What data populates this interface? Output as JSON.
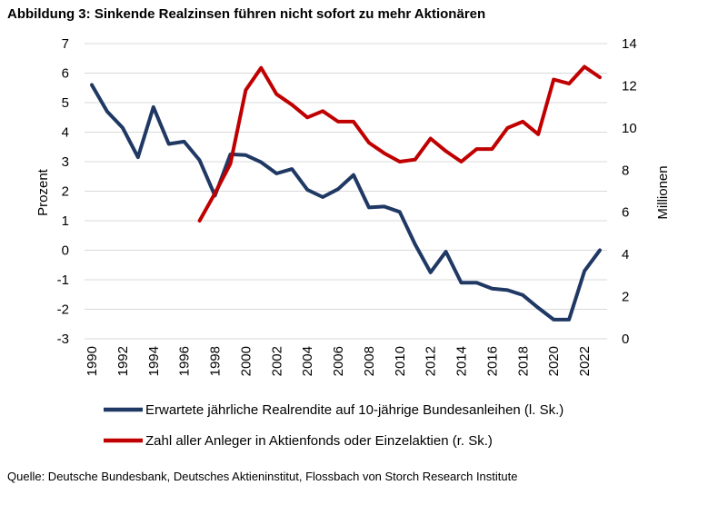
{
  "chart_data": {
    "type": "line",
    "title": "Abbildung 3: Sinkende Realzinsen führen nicht sofort zu mehr Aktionären",
    "source": "Quelle: Deutsche Bundesbank, Deutsches Aktieninstitut, Flossbach von Storch Research Institute",
    "ylabel_left": "Prozent",
    "ylabel_right": "Millionen",
    "ylim_left": [
      -3,
      7
    ],
    "ylim_right": [
      0,
      14
    ],
    "yticks_left": [
      "-3",
      "-2",
      "-1",
      "0",
      "1",
      "2",
      "3",
      "4",
      "5",
      "6",
      "7"
    ],
    "yticks_right": [
      "0",
      "2",
      "4",
      "6",
      "8",
      "10",
      "12",
      "14"
    ],
    "xlim": [
      1990,
      2023
    ],
    "xticks": [
      "1990",
      "1992",
      "1994",
      "1996",
      "1998",
      "2000",
      "2002",
      "2004",
      "2006",
      "2008",
      "2010",
      "2012",
      "2014",
      "2016",
      "2018",
      "2020",
      "2022"
    ],
    "grid": true,
    "legend_position": "bottom",
    "series": [
      {
        "name": "Erwartete jährliche Realrendite auf 10-jährige Bundesanleihen (l. Sk.)",
        "axis": "left",
        "color": "#1F3864",
        "x": [
          1990,
          1991,
          1992,
          1993,
          1994,
          1995,
          1996,
          1997,
          1998,
          1999,
          2000,
          2001,
          2002,
          2003,
          2004,
          2005,
          2006,
          2007,
          2008,
          2009,
          2010,
          2011,
          2012,
          2013,
          2014,
          2015,
          2016,
          2017,
          2018,
          2019,
          2020,
          2021,
          2022,
          2023
        ],
        "values": [
          5.6,
          4.7,
          4.15,
          3.15,
          4.85,
          3.6,
          3.68,
          3.05,
          1.85,
          3.25,
          3.22,
          2.98,
          2.6,
          2.75,
          2.05,
          1.8,
          2.07,
          2.55,
          1.45,
          1.48,
          1.3,
          0.2,
          -0.75,
          -0.05,
          -1.1,
          -1.1,
          -1.3,
          -1.35,
          -1.52,
          -1.95,
          -2.35,
          -2.35,
          -0.7,
          0.0
        ]
      },
      {
        "name": "Zahl aller Anleger in Aktienfonds oder Einzelaktien (r. Sk.)",
        "axis": "right",
        "color": "#C00000",
        "x": [
          1997,
          1998,
          1999,
          2000,
          2001,
          2002,
          2003,
          2004,
          2005,
          2006,
          2007,
          2008,
          2009,
          2010,
          2011,
          2012,
          2013,
          2014,
          2015,
          2016,
          2017,
          2018,
          2019,
          2020,
          2021,
          2022,
          2023
        ],
        "values": [
          5.6,
          6.9,
          8.3,
          11.8,
          12.85,
          11.6,
          11.1,
          10.5,
          10.8,
          10.3,
          10.3,
          9.3,
          8.8,
          8.4,
          8.5,
          9.5,
          8.9,
          8.4,
          9.0,
          9.0,
          10.0,
          10.3,
          9.7,
          12.3,
          12.1,
          12.9,
          12.4
        ]
      }
    ]
  }
}
